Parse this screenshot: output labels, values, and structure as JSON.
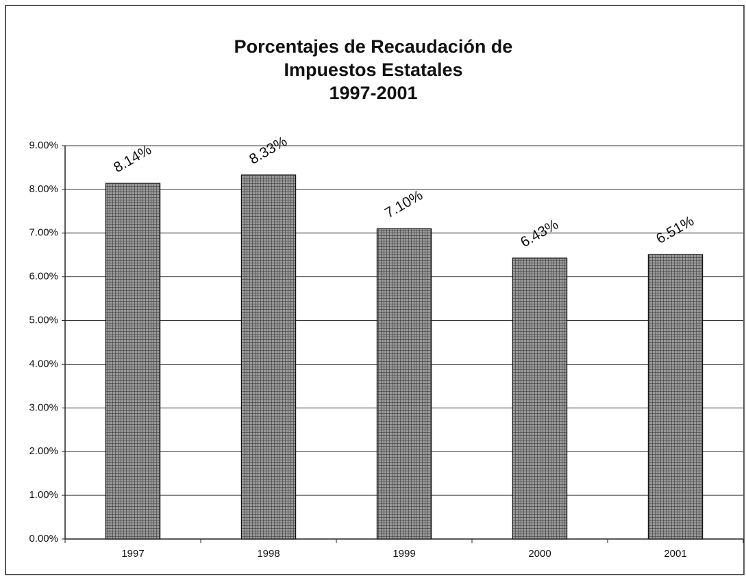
{
  "chart_data": {
    "type": "bar",
    "title": [
      "Porcentajes de Recaudación de",
      "Impuestos Estatales",
      "1997-2001"
    ],
    "categories": [
      "1997",
      "1998",
      "1999",
      "2000",
      "2001"
    ],
    "values": [
      8.14,
      8.33,
      7.1,
      6.43,
      6.51
    ],
    "value_labels": [
      "8.14%",
      "8.33%",
      "7.10%",
      "6.43%",
      "6.51%"
    ],
    "color": "#6e6e6e",
    "ylim": [
      0,
      9
    ],
    "yticks": [
      {
        "value": 0,
        "label": "0.00%"
      },
      {
        "value": 1,
        "label": "1.00%"
      },
      {
        "value": 2,
        "label": "2.00%"
      },
      {
        "value": 3,
        "label": "3.00%"
      },
      {
        "value": 4,
        "label": "4.00%"
      },
      {
        "value": 5,
        "label": "5.00%"
      },
      {
        "value": 6,
        "label": "6.00%"
      },
      {
        "value": 7,
        "label": "7.00%"
      },
      {
        "value": 8,
        "label": "8.00%"
      },
      {
        "value": 9,
        "label": "9.00%"
      }
    ],
    "grid": true
  }
}
